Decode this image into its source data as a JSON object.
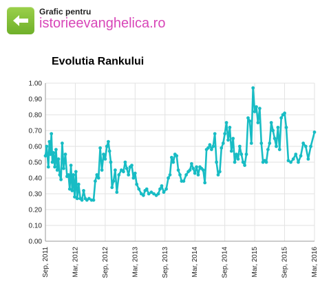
{
  "header": {
    "label": "Grafic pentru",
    "site": "istorieevanghelica.ro",
    "back_icon": "left-arrow-icon"
  },
  "colors": {
    "accent": "#6fb02a",
    "site_link": "#d846b8",
    "series": "#18bcc4"
  },
  "chart_data": {
    "type": "line",
    "title": "Evolutia Rankului",
    "xlabel": "",
    "ylabel": "",
    "ylim": [
      0,
      1.0
    ],
    "yticks": [
      "0.00",
      "0.10",
      "0.20",
      "0.30",
      "0.40",
      "0.50",
      "0.60",
      "0.70",
      "0.80",
      "0.90",
      "1.00"
    ],
    "xticks": [
      "Sep, 2011",
      "Mar, 2012",
      "Sep, 2012",
      "Mar, 2013",
      "Sep, 2013",
      "Mar, 2014",
      "Sep, 2014",
      "Mar, 2015",
      "Sep, 2015",
      "Mar, 2016"
    ],
    "xrange": [
      "2011-09",
      "2016-03"
    ],
    "grid": true,
    "series": [
      {
        "values": [
          [
            "2011-09",
            0.54
          ],
          [
            "2011-09",
            0.6
          ],
          [
            "2011-10",
            0.47
          ],
          [
            "2011-10",
            0.63
          ],
          [
            "2011-10",
            0.55
          ],
          [
            "2011-10",
            0.68
          ],
          [
            "2011-10",
            0.5
          ],
          [
            "2011-11",
            0.56
          ],
          [
            "2011-11",
            0.47
          ],
          [
            "2011-11",
            0.58
          ],
          [
            "2011-11",
            0.45
          ],
          [
            "2011-12",
            0.52
          ],
          [
            "2011-12",
            0.42
          ],
          [
            "2011-12",
            0.39
          ],
          [
            "2011-12",
            0.62
          ],
          [
            "2012-01",
            0.46
          ],
          [
            "2012-01",
            0.55
          ],
          [
            "2012-01",
            0.41
          ],
          [
            "2012-02",
            0.42
          ],
          [
            "2012-02",
            0.33
          ],
          [
            "2012-02",
            0.48
          ],
          [
            "2012-02",
            0.32
          ],
          [
            "2012-03",
            0.42
          ],
          [
            "2012-03",
            0.28
          ],
          [
            "2012-03",
            0.44
          ],
          [
            "2012-03",
            0.27
          ],
          [
            "2012-04",
            0.36
          ],
          [
            "2012-04",
            0.27
          ],
          [
            "2012-04",
            0.26
          ],
          [
            "2012-05",
            0.32
          ],
          [
            "2012-05",
            0.27
          ],
          [
            "2012-05",
            0.26
          ],
          [
            "2012-06",
            0.27
          ],
          [
            "2012-06",
            0.26
          ],
          [
            "2012-07",
            0.26
          ],
          [
            "2012-07",
            0.38
          ],
          [
            "2012-07",
            0.42
          ],
          [
            "2012-08",
            0.4
          ],
          [
            "2012-08",
            0.59
          ],
          [
            "2012-08",
            0.45
          ],
          [
            "2012-09",
            0.55
          ],
          [
            "2012-09",
            0.52
          ],
          [
            "2012-09",
            0.6
          ],
          [
            "2012-10",
            0.63
          ],
          [
            "2012-10",
            0.57
          ],
          [
            "2012-10",
            0.5
          ],
          [
            "2012-10",
            0.34
          ],
          [
            "2012-11",
            0.38
          ],
          [
            "2012-11",
            0.45
          ],
          [
            "2012-11",
            0.31
          ],
          [
            "2012-12",
            0.42
          ],
          [
            "2012-12",
            0.45
          ],
          [
            "2013-01",
            0.44
          ],
          [
            "2013-01",
            0.5
          ],
          [
            "2013-01",
            0.46
          ],
          [
            "2013-02",
            0.42
          ],
          [
            "2013-02",
            0.47
          ],
          [
            "2013-02",
            0.48
          ],
          [
            "2013-03",
            0.4
          ],
          [
            "2013-03",
            0.43
          ],
          [
            "2013-03",
            0.36
          ],
          [
            "2013-04",
            0.33
          ],
          [
            "2013-04",
            0.3
          ],
          [
            "2013-05",
            0.29
          ],
          [
            "2013-05",
            0.32
          ],
          [
            "2013-05",
            0.33
          ],
          [
            "2013-06",
            0.3
          ],
          [
            "2013-06",
            0.31
          ],
          [
            "2013-07",
            0.3
          ],
          [
            "2013-07",
            0.29
          ],
          [
            "2013-08",
            0.3
          ],
          [
            "2013-08",
            0.33
          ],
          [
            "2013-08",
            0.35
          ],
          [
            "2013-09",
            0.31
          ],
          [
            "2013-09",
            0.33
          ],
          [
            "2013-10",
            0.4
          ],
          [
            "2013-10",
            0.42
          ],
          [
            "2013-10",
            0.53
          ],
          [
            "2013-11",
            0.5
          ],
          [
            "2013-11",
            0.55
          ],
          [
            "2013-11",
            0.54
          ],
          [
            "2013-12",
            0.45
          ],
          [
            "2013-12",
            0.42
          ],
          [
            "2013-12",
            0.38
          ],
          [
            "2014-01",
            0.38
          ],
          [
            "2014-01",
            0.42
          ],
          [
            "2014-02",
            0.44
          ],
          [
            "2014-02",
            0.45
          ],
          [
            "2014-02",
            0.49
          ],
          [
            "2014-03",
            0.46
          ],
          [
            "2014-03",
            0.43
          ],
          [
            "2014-03",
            0.47
          ],
          [
            "2014-04",
            0.42
          ],
          [
            "2014-04",
            0.47
          ],
          [
            "2014-04",
            0.46
          ],
          [
            "2014-05",
            0.45
          ],
          [
            "2014-05",
            0.37
          ],
          [
            "2014-05",
            0.58
          ],
          [
            "2014-06",
            0.59
          ],
          [
            "2014-06",
            0.61
          ],
          [
            "2014-06",
            0.58
          ],
          [
            "2014-07",
            0.6
          ],
          [
            "2014-07",
            0.68
          ],
          [
            "2014-07",
            0.5
          ],
          [
            "2014-08",
            0.42
          ],
          [
            "2014-08",
            0.44
          ],
          [
            "2014-08",
            0.59
          ],
          [
            "2014-09",
            0.62
          ],
          [
            "2014-09",
            0.68
          ],
          [
            "2014-09",
            0.75
          ],
          [
            "2014-10",
            0.64
          ],
          [
            "2014-10",
            0.72
          ],
          [
            "2014-10",
            0.57
          ],
          [
            "2014-11",
            0.65
          ],
          [
            "2014-11",
            0.5
          ],
          [
            "2014-11",
            0.55
          ],
          [
            "2014-12",
            0.52
          ],
          [
            "2014-12",
            0.6
          ],
          [
            "2014-12",
            0.55
          ],
          [
            "2015-01",
            0.5
          ],
          [
            "2015-01",
            0.48
          ],
          [
            "2015-01",
            0.55
          ],
          [
            "2015-02",
            0.78
          ],
          [
            "2015-02",
            0.76
          ],
          [
            "2015-02",
            0.62
          ],
          [
            "2015-03",
            0.97
          ],
          [
            "2015-03",
            0.82
          ],
          [
            "2015-03",
            0.85
          ],
          [
            "2015-04",
            0.75
          ],
          [
            "2015-04",
            0.84
          ],
          [
            "2015-04",
            0.62
          ],
          [
            "2015-05",
            0.5
          ],
          [
            "2015-05",
            0.51
          ],
          [
            "2015-05",
            0.5
          ],
          [
            "2015-06",
            0.58
          ],
          [
            "2015-06",
            0.62
          ],
          [
            "2015-06",
            0.75
          ],
          [
            "2015-07",
            0.7
          ],
          [
            "2015-07",
            0.65
          ],
          [
            "2015-07",
            0.6
          ],
          [
            "2015-08",
            0.72
          ],
          [
            "2015-08",
            0.58
          ],
          [
            "2015-08",
            0.78
          ],
          [
            "2015-09",
            0.8
          ],
          [
            "2015-09",
            0.81
          ],
          [
            "2015-09",
            0.72
          ],
          [
            "2015-10",
            0.51
          ],
          [
            "2015-10",
            0.5
          ],
          [
            "2015-11",
            0.52
          ],
          [
            "2015-11",
            0.55
          ],
          [
            "2015-12",
            0.5
          ],
          [
            "2015-12",
            0.54
          ],
          [
            "2016-01",
            0.62
          ],
          [
            "2016-01",
            0.6
          ],
          [
            "2016-02",
            0.52
          ],
          [
            "2016-02",
            0.6
          ],
          [
            "2016-03",
            0.69
          ]
        ]
      }
    ]
  }
}
